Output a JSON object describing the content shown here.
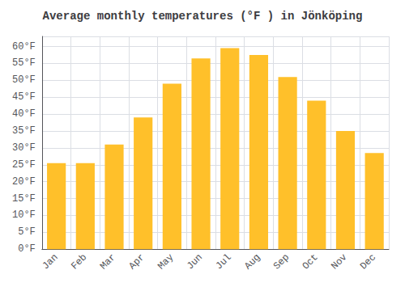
{
  "chart_data": {
    "type": "bar",
    "title": "Average monthly temperatures (°F ) in Jönköping",
    "categories": [
      "Jan",
      "Feb",
      "Mar",
      "Apr",
      "May",
      "Jun",
      "Jul",
      "Aug",
      "Sep",
      "Oct",
      "Nov",
      "Dec"
    ],
    "values": [
      25.5,
      25.5,
      31.0,
      39.0,
      49.0,
      56.5,
      59.5,
      57.5,
      51.0,
      44.0,
      35.0,
      28.5
    ],
    "color": "#FFC02A",
    "ylim": [
      0,
      63
    ],
    "yticks": [
      {
        "value": 0,
        "label": "0°F"
      },
      {
        "value": 5,
        "label": "5°F"
      },
      {
        "value": 10,
        "label": "10°F"
      },
      {
        "value": 15,
        "label": "15°F"
      },
      {
        "value": 20,
        "label": "20°F"
      },
      {
        "value": 25,
        "label": "25°F"
      },
      {
        "value": 30,
        "label": "30°F"
      },
      {
        "value": 35,
        "label": "35°F"
      },
      {
        "value": 40,
        "label": "40°F"
      },
      {
        "value": 45,
        "label": "45°F"
      },
      {
        "value": 50,
        "label": "50°F"
      },
      {
        "value": 55,
        "label": "55°F"
      },
      {
        "value": 60,
        "label": "60°F"
      }
    ],
    "grid": true
  }
}
